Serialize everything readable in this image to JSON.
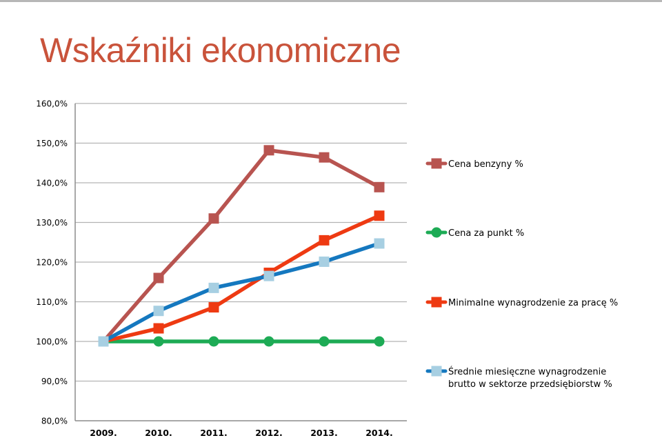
{
  "title": "Wskaźniki ekonomiczne",
  "colors": {
    "title": "#c9533b",
    "gridline": "#b3b3b3",
    "axis": "#8c8c8c"
  },
  "chart_data": {
    "type": "line",
    "title": "",
    "xlabel": "",
    "ylabel": "",
    "categories": [
      "2009.",
      "2010.",
      "2011.",
      "2012.",
      "2013.",
      "2014."
    ],
    "ylim": [
      80,
      160
    ],
    "yticks": [
      80,
      90,
      100,
      110,
      120,
      130,
      140,
      150,
      160
    ],
    "ytick_labels": [
      "80,0%",
      "90,0%",
      "100,0%",
      "110,0%",
      "120,0%",
      "130,0%",
      "140,0%",
      "150,0%",
      "160,0%"
    ],
    "grid": true,
    "legend_position": "right",
    "series": [
      {
        "name": "Cena benzyny %",
        "color": "#b85450",
        "marker": "square",
        "values": [
          100,
          116,
          131,
          148.2,
          146.4,
          138.9
        ]
      },
      {
        "name": "Cena za punkt %",
        "color": "#1dab55",
        "marker": "circle",
        "values": [
          100,
          100,
          100,
          100,
          100,
          100
        ]
      },
      {
        "name": "Minimalne wynagrodzenie za pracę %",
        "color": "#ee3a12",
        "marker": "square",
        "values": [
          100,
          103.3,
          108.6,
          117.3,
          125.5,
          131.7
        ]
      },
      {
        "name": "Średnie miesięczne wynagrodzenie brutto w sektorze przedsiębiorstw  %",
        "legend_lines": [
          "Średnie miesięczne wynagrodzenie",
          "brutto w sektorze przedsiębiorstw  %"
        ],
        "color": "#1578bf",
        "marker_color": "#a7cfe2",
        "marker": "square",
        "values": [
          100,
          107.7,
          113.5,
          116.5,
          120.1,
          124.7
        ]
      }
    ]
  }
}
